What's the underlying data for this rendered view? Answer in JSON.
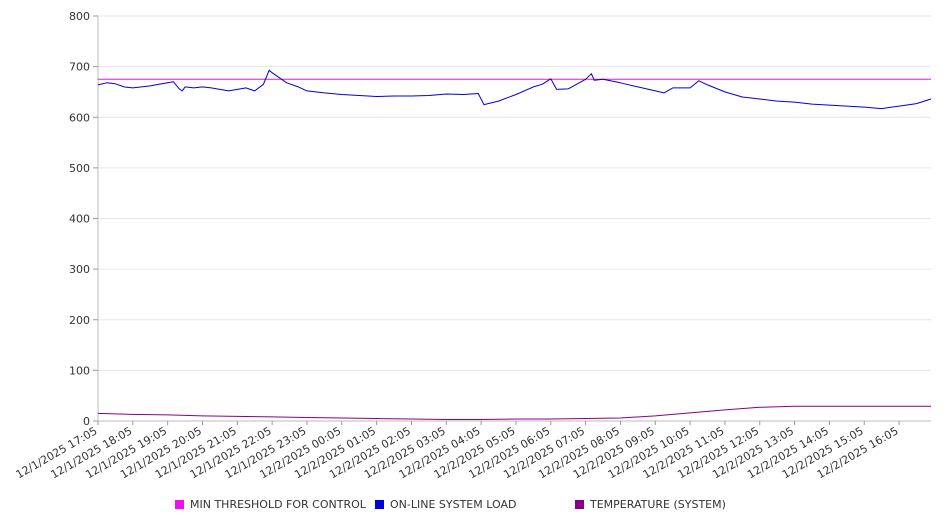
{
  "chart_data": {
    "type": "line",
    "title": "",
    "xlabel": "",
    "ylabel": "",
    "ylim": [
      0,
      800
    ],
    "yticks": [
      "0",
      "100",
      "200",
      "300",
      "400",
      "500",
      "600",
      "700",
      "800"
    ],
    "x_tick_labels": [
      "12/1/2025 17:05",
      "12/1/2025 18:05",
      "12/1/2025 19:05",
      "12/1/2025 20:05",
      "12/1/2025 21:05",
      "12/1/2025 22:05",
      "12/1/2025 23:05",
      "12/2/2025 00:05",
      "12/2/2025 01:05",
      "12/2/2025 02:05",
      "12/2/2025 03:05",
      "12/2/2025 04:05",
      "12/2/2025 05:05",
      "12/2/2025 06:05",
      "12/2/2025 07:05",
      "12/2/2025 08:05",
      "12/2/2025 09:05",
      "12/2/2025 10:05",
      "12/2/2025 11:05",
      "12/2/2025 12:05",
      "12/2/2025 13:05",
      "12/2/2025 14:05",
      "12/2/2025 15:05",
      "12/2/2025 16:05"
    ],
    "x_range": [
      "12/1/2025 17:05",
      "12/2/2025 17:00"
    ],
    "grid": true,
    "legend_position": "bottom",
    "series": [
      {
        "name": "MIN THRESHOLD FOR CONTROL",
        "color": "#ee11ee",
        "x": [
          "12/1/2025 17:05",
          "12/2/2025 17:00"
        ],
        "values": [
          675,
          675
        ]
      },
      {
        "name": "ON-LINE SYSTEM LOAD",
        "color": "#0000dd",
        "x": [
          "12/1/2025 17:05",
          "12/1/2025 17:20",
          "12/1/2025 17:35",
          "12/1/2025 17:50",
          "12/1/2025 18:05",
          "12/1/2025 18:20",
          "12/1/2025 18:35",
          "12/1/2025 18:50",
          "12/1/2025 19:05",
          "12/1/2025 19:15",
          "12/1/2025 19:25",
          "12/1/2025 19:30",
          "12/1/2025 19:35",
          "12/1/2025 19:50",
          "12/1/2025 20:05",
          "12/1/2025 20:20",
          "12/1/2025 20:35",
          "12/1/2025 20:50",
          "12/1/2025 21:05",
          "12/1/2025 21:20",
          "12/1/2025 21:35",
          "12/1/2025 21:50",
          "12/1/2025 22:00",
          "12/1/2025 22:05",
          "12/1/2025 22:15",
          "12/1/2025 22:30",
          "12/1/2025 22:50",
          "12/1/2025 23:05",
          "12/1/2025 23:35",
          "12/2/2025 00:05",
          "12/2/2025 00:35",
          "12/2/2025 01:05",
          "12/2/2025 01:35",
          "12/2/2025 02:05",
          "12/2/2025 02:35",
          "12/2/2025 03:05",
          "12/2/2025 03:35",
          "12/2/2025 04:00",
          "12/2/2025 04:10",
          "12/2/2025 04:35",
          "12/2/2025 05:05",
          "12/2/2025 05:35",
          "12/2/2025 05:50",
          "12/2/2025 06:05",
          "12/2/2025 06:15",
          "12/2/2025 06:35",
          "12/2/2025 07:05",
          "12/2/2025 07:15",
          "12/2/2025 07:20",
          "12/2/2025 07:35",
          "12/2/2025 08:05",
          "12/2/2025 08:35",
          "12/2/2025 09:05",
          "12/2/2025 09:20",
          "12/2/2025 09:35",
          "12/2/2025 10:05",
          "12/2/2025 10:20",
          "12/2/2025 10:35",
          "12/2/2025 11:05",
          "12/2/2025 11:35",
          "12/2/2025 12:05",
          "12/2/2025 12:35",
          "12/2/2025 13:05",
          "12/2/2025 13:35",
          "12/2/2025 14:05",
          "12/2/2025 14:35",
          "12/2/2025 15:05",
          "12/2/2025 15:35",
          "12/2/2025 16:05",
          "12/2/2025 16:35",
          "12/2/2025 17:00"
        ],
        "values": [
          664,
          668,
          666,
          660,
          658,
          660,
          662,
          665,
          668,
          670,
          656,
          652,
          660,
          658,
          660,
          658,
          655,
          652,
          655,
          658,
          652,
          665,
          693,
          688,
          680,
          668,
          660,
          652,
          648,
          645,
          643,
          641,
          642,
          642,
          643,
          646,
          645,
          647,
          625,
          632,
          645,
          660,
          665,
          676,
          655,
          656,
          675,
          686,
          673,
          675,
          668,
          660,
          652,
          648,
          658,
          658,
          672,
          664,
          650,
          640,
          636,
          632,
          630,
          626,
          624,
          622,
          620,
          617,
          622,
          627,
          636
        ]
      },
      {
        "name": "TEMPERATURE (SYSTEM)",
        "color": "#880088",
        "x": [
          "12/1/2025 17:05",
          "12/1/2025 18:05",
          "12/1/2025 19:05",
          "12/1/2025 20:05",
          "12/1/2025 21:05",
          "12/1/2025 22:05",
          "12/1/2025 23:05",
          "12/2/2025 00:05",
          "12/2/2025 01:05",
          "12/2/2025 02:05",
          "12/2/2025 03:05",
          "12/2/2025 04:05",
          "12/2/2025 05:05",
          "12/2/2025 06:05",
          "12/2/2025 07:05",
          "12/2/2025 08:05",
          "12/2/2025 09:05",
          "12/2/2025 10:05",
          "12/2/2025 11:05",
          "12/2/2025 12:05",
          "12/2/2025 13:05",
          "12/2/2025 14:05",
          "12/2/2025 15:05",
          "12/2/2025 16:05",
          "12/2/2025 17:00"
        ],
        "values": [
          15,
          13,
          12,
          10,
          9,
          8,
          7,
          6,
          5,
          4,
          3,
          3,
          4,
          4,
          5,
          6,
          10,
          16,
          22,
          27,
          29,
          29,
          29,
          29,
          29
        ]
      }
    ]
  }
}
